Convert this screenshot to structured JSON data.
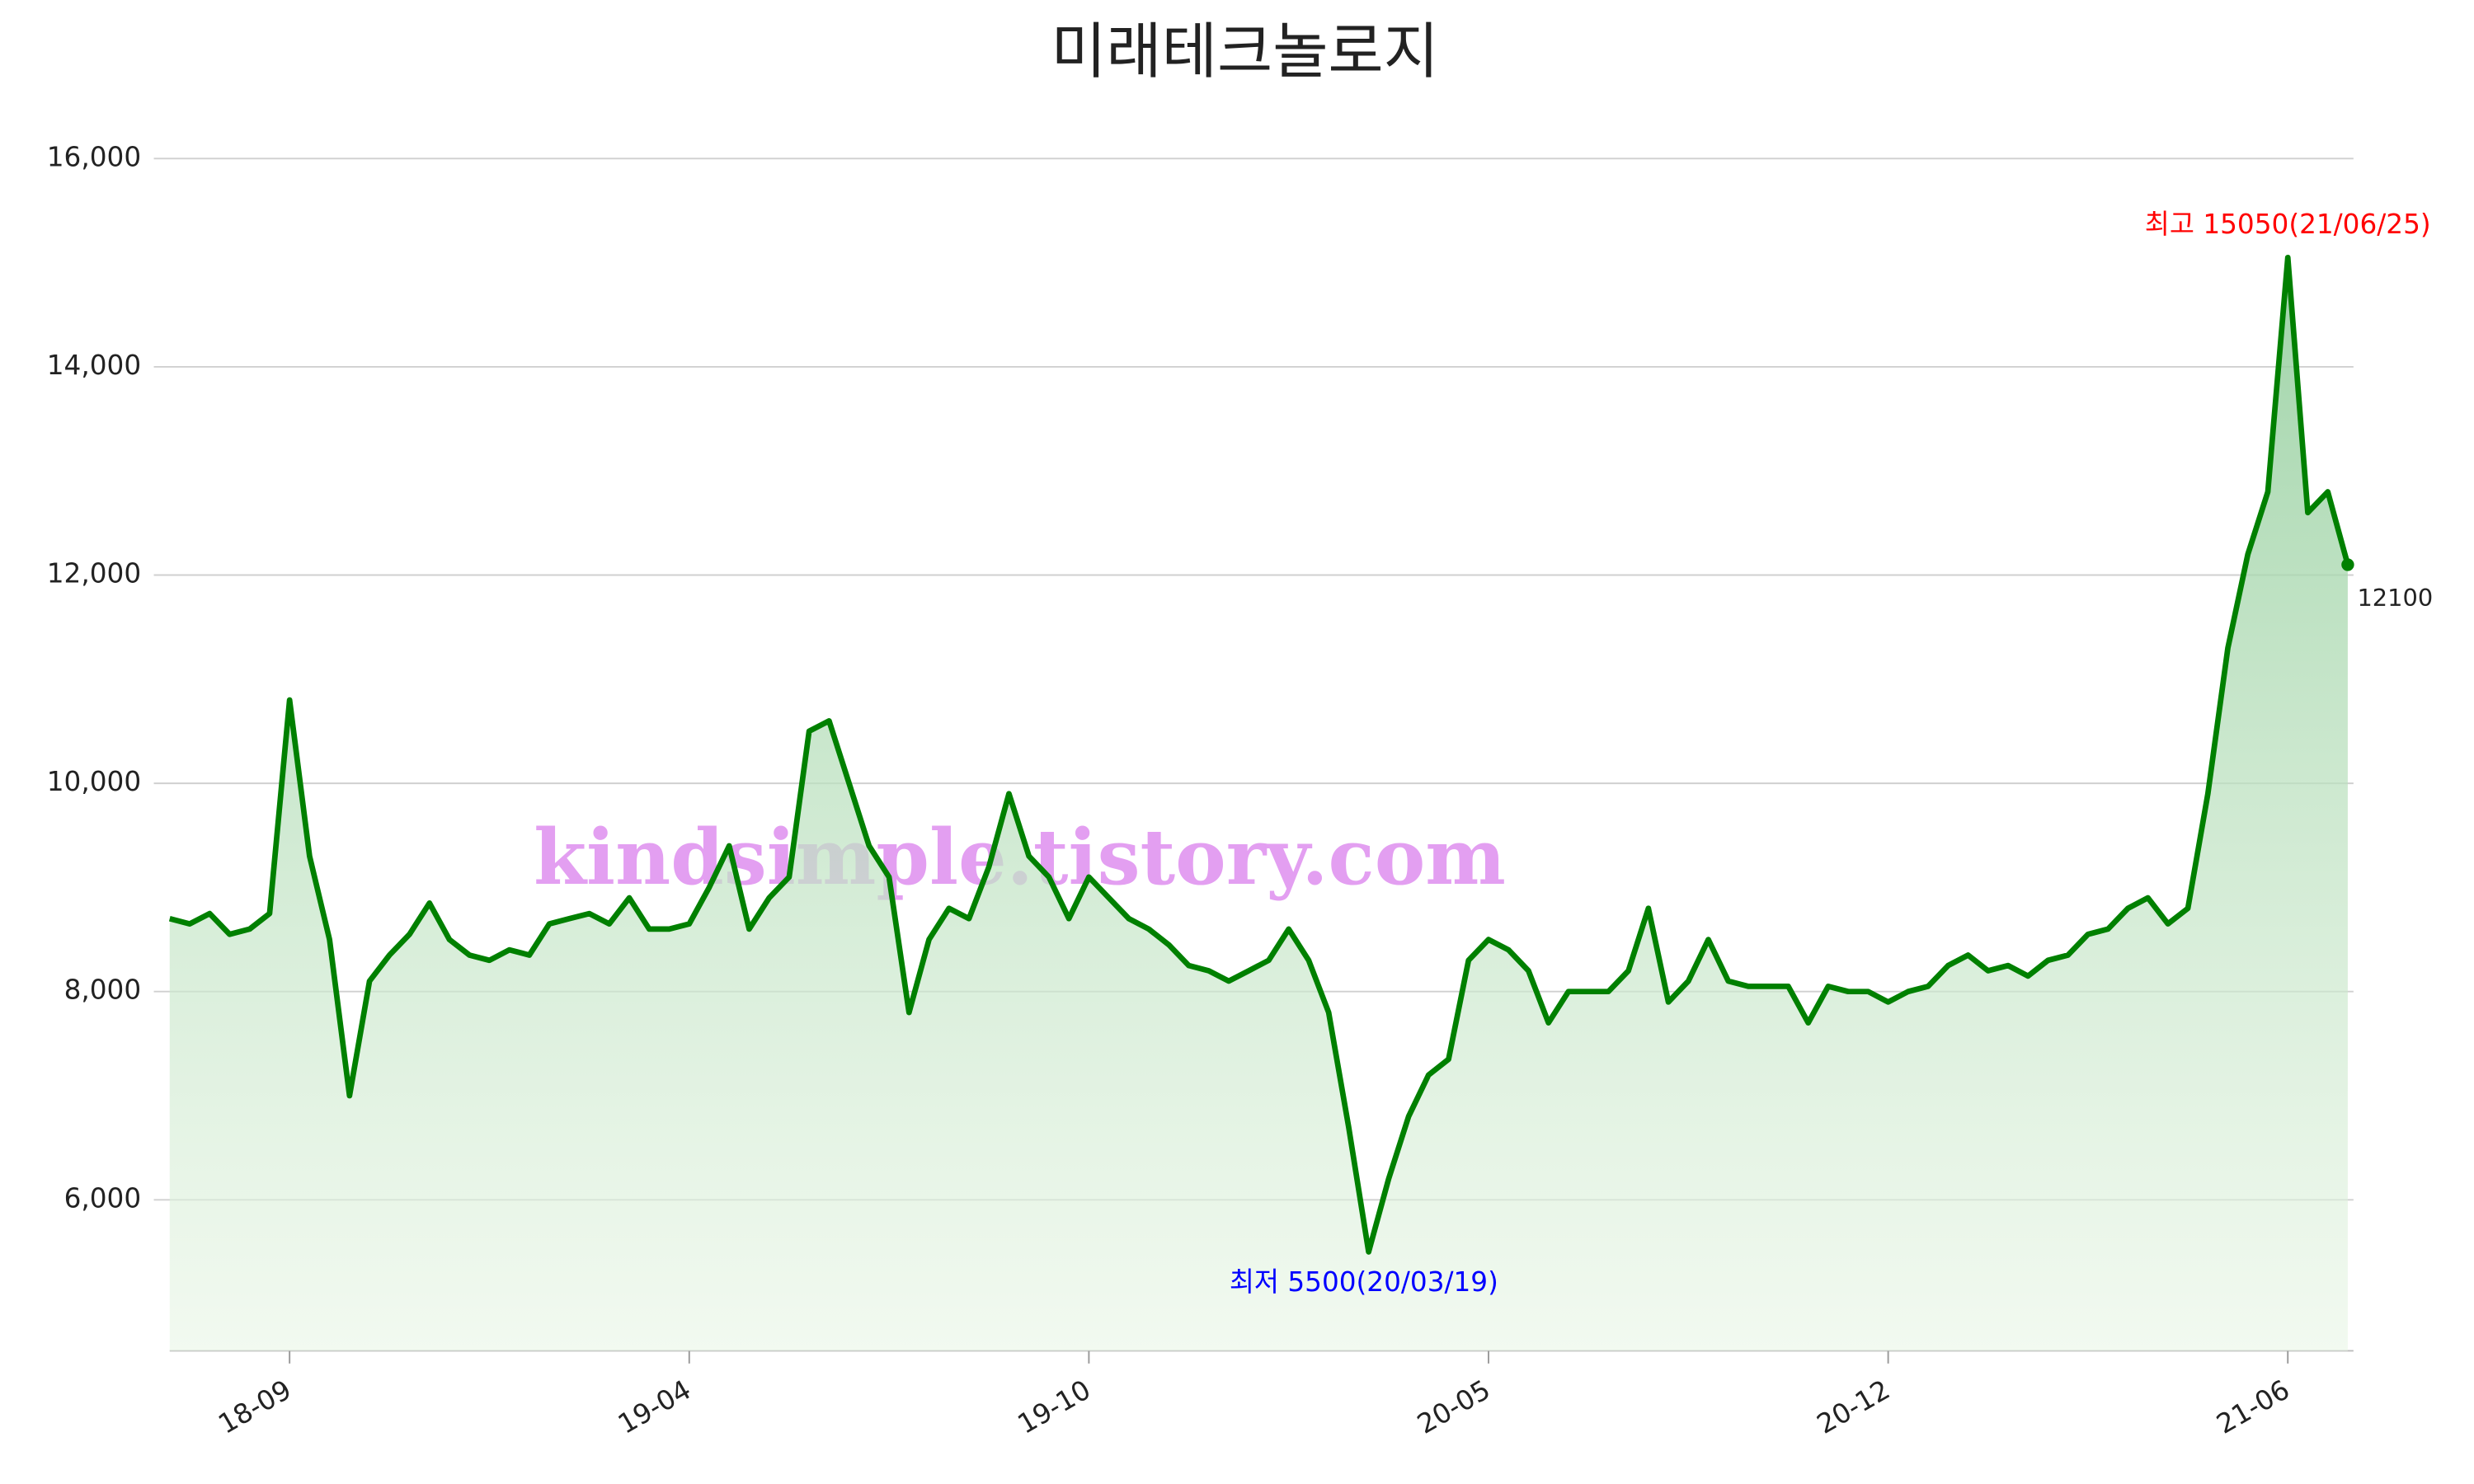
{
  "chart_data": {
    "type": "line",
    "title": "미래테크놀로지",
    "watermark": "kindsimple.tistory.com",
    "categories": [
      null,
      null,
      null,
      null,
      null,
      null,
      "18-09",
      null,
      null,
      null,
      null,
      null,
      null,
      null,
      null,
      null,
      null,
      null,
      null,
      null,
      null,
      null,
      null,
      null,
      null,
      null,
      "19-04",
      null,
      null,
      null,
      null,
      null,
      null,
      null,
      null,
      null,
      null,
      null,
      null,
      null,
      null,
      null,
      null,
      null,
      null,
      null,
      "19-10",
      null,
      null,
      null,
      null,
      null,
      null,
      null,
      null,
      null,
      null,
      null,
      null,
      null,
      null,
      null,
      null,
      null,
      null,
      null,
      "20-05",
      null,
      null,
      null,
      null,
      null,
      null,
      null,
      null,
      null,
      null,
      null,
      null,
      null,
      null,
      null,
      null,
      null,
      null,
      null,
      "20-12",
      null,
      null,
      null,
      null,
      null,
      null,
      null,
      null,
      null,
      null,
      null,
      null,
      null,
      null,
      null,
      null,
      null,
      null,
      null,
      "21-06",
      null,
      null,
      null
    ],
    "series": [
      {
        "color": "#008000",
        "values": [
          8700,
          8650,
          8750,
          8550,
          8600,
          8750,
          10800,
          9300,
          8500,
          7000,
          8100,
          8350,
          8550,
          8850,
          8500,
          8350,
          8300,
          8400,
          8350,
          8650,
          8700,
          8750,
          8650,
          8900,
          8600,
          8600,
          8650,
          9000,
          9400,
          8600,
          8900,
          9100,
          10500,
          10600,
          10000,
          9400,
          9100,
          7800,
          8500,
          8800,
          8700,
          9200,
          9900,
          9300,
          9100,
          8700,
          9100,
          8900,
          8700,
          8600,
          8450,
          8250,
          8200,
          8100,
          8200,
          8300,
          8600,
          8300,
          7800,
          6700,
          5500,
          6200,
          6800,
          7200,
          7350,
          8300,
          8500,
          8400,
          8200,
          7700,
          8000,
          8000,
          8000,
          8200,
          8800,
          7900,
          8100,
          8500,
          8100,
          8050,
          8050,
          8050,
          7700,
          8050,
          8000,
          8000,
          7900,
          8000,
          8050,
          8250,
          8350,
          8200,
          8250,
          8150,
          8300,
          8350,
          8550,
          8600,
          8800,
          8900,
          8650,
          8800,
          9900,
          11300,
          12200,
          12800,
          15050,
          12600,
          12800,
          12100
        ]
      }
    ],
    "annotations": [
      {
        "text": "최고 15050(21/06/25)",
        "color": "#ff0000"
      },
      {
        "text": "최저 5500(20/03/19)",
        "color": "#0000ff"
      }
    ],
    "ylim": [
      4550,
      16000
    ],
    "yticks": [
      {
        "value": 6000,
        "label": "6,000"
      },
      {
        "value": 8000,
        "label": "8,000"
      },
      {
        "value": 10000,
        "label": "10,000"
      },
      {
        "value": 12000,
        "label": "12,000"
      },
      {
        "value": 14000,
        "label": "14,000"
      },
      {
        "value": 16000,
        "label": "16,000"
      }
    ],
    "grid": true
  }
}
